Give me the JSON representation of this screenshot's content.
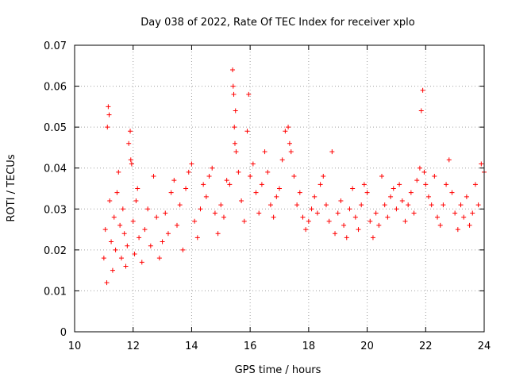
{
  "chart_data": {
    "type": "scatter",
    "title": "Day 038 of 2022, Rate Of TEC Index for receiver xplo",
    "xlabel": "GPS time / hours",
    "ylabel": "ROTI / TECUs",
    "xlim": [
      10,
      24
    ],
    "ylim": [
      0,
      0.07
    ],
    "xticks": [
      10,
      12,
      14,
      16,
      18,
      20,
      22,
      24
    ],
    "xtick_labels": [
      "10",
      "12",
      "14",
      "16",
      "18",
      "20",
      "22",
      "24"
    ],
    "yticks": [
      0,
      0.01,
      0.02,
      0.03,
      0.04,
      0.05,
      0.06,
      0.07
    ],
    "ytick_labels": [
      "0",
      "0.01",
      "0.02",
      "0.03",
      "0.04",
      "0.05",
      "0.06",
      "0.07"
    ],
    "grid": true,
    "marker": "plus",
    "color": "#ff0000",
    "series": [
      {
        "name": "ROTI",
        "points": [
          [
            11.0,
            0.018
          ],
          [
            11.05,
            0.025
          ],
          [
            11.1,
            0.012
          ],
          [
            11.12,
            0.05
          ],
          [
            11.15,
            0.055
          ],
          [
            11.18,
            0.053
          ],
          [
            11.2,
            0.032
          ],
          [
            11.25,
            0.022
          ],
          [
            11.3,
            0.015
          ],
          [
            11.35,
            0.028
          ],
          [
            11.4,
            0.02
          ],
          [
            11.45,
            0.034
          ],
          [
            11.5,
            0.039
          ],
          [
            11.55,
            0.026
          ],
          [
            11.6,
            0.018
          ],
          [
            11.65,
            0.03
          ],
          [
            11.7,
            0.024
          ],
          [
            11.75,
            0.016
          ],
          [
            11.8,
            0.021
          ],
          [
            11.85,
            0.046
          ],
          [
            11.9,
            0.049
          ],
          [
            11.92,
            0.042
          ],
          [
            11.95,
            0.041
          ],
          [
            12.0,
            0.027
          ],
          [
            12.05,
            0.019
          ],
          [
            12.1,
            0.032
          ],
          [
            12.15,
            0.035
          ],
          [
            12.2,
            0.023
          ],
          [
            12.3,
            0.017
          ],
          [
            12.4,
            0.025
          ],
          [
            12.5,
            0.03
          ],
          [
            12.6,
            0.021
          ],
          [
            12.7,
            0.038
          ],
          [
            12.8,
            0.028
          ],
          [
            12.9,
            0.018
          ],
          [
            13.0,
            0.022
          ],
          [
            13.1,
            0.029
          ],
          [
            13.2,
            0.024
          ],
          [
            13.3,
            0.034
          ],
          [
            13.4,
            0.037
          ],
          [
            13.5,
            0.026
          ],
          [
            13.6,
            0.031
          ],
          [
            13.7,
            0.02
          ],
          [
            13.8,
            0.035
          ],
          [
            13.9,
            0.039
          ],
          [
            14.0,
            0.041
          ],
          [
            14.1,
            0.027
          ],
          [
            14.2,
            0.023
          ],
          [
            14.3,
            0.03
          ],
          [
            14.4,
            0.036
          ],
          [
            14.5,
            0.033
          ],
          [
            14.6,
            0.038
          ],
          [
            14.7,
            0.04
          ],
          [
            14.8,
            0.029
          ],
          [
            14.9,
            0.024
          ],
          [
            15.0,
            0.031
          ],
          [
            15.1,
            0.028
          ],
          [
            15.2,
            0.037
          ],
          [
            15.3,
            0.036
          ],
          [
            15.4,
            0.064
          ],
          [
            15.42,
            0.06
          ],
          [
            15.44,
            0.058
          ],
          [
            15.46,
            0.05
          ],
          [
            15.48,
            0.046
          ],
          [
            15.5,
            0.054
          ],
          [
            15.52,
            0.044
          ],
          [
            15.6,
            0.039
          ],
          [
            15.7,
            0.032
          ],
          [
            15.8,
            0.027
          ],
          [
            15.9,
            0.049
          ],
          [
            15.95,
            0.058
          ],
          [
            16.0,
            0.038
          ],
          [
            16.1,
            0.041
          ],
          [
            16.2,
            0.034
          ],
          [
            16.3,
            0.029
          ],
          [
            16.4,
            0.036
          ],
          [
            16.5,
            0.044
          ],
          [
            16.6,
            0.039
          ],
          [
            16.7,
            0.031
          ],
          [
            16.8,
            0.028
          ],
          [
            16.9,
            0.033
          ],
          [
            17.0,
            0.035
          ],
          [
            17.1,
            0.042
          ],
          [
            17.2,
            0.049
          ],
          [
            17.3,
            0.05
          ],
          [
            17.35,
            0.046
          ],
          [
            17.4,
            0.044
          ],
          [
            17.5,
            0.038
          ],
          [
            17.6,
            0.031
          ],
          [
            17.7,
            0.034
          ],
          [
            17.8,
            0.028
          ],
          [
            17.9,
            0.025
          ],
          [
            18.0,
            0.027
          ],
          [
            18.1,
            0.03
          ],
          [
            18.2,
            0.033
          ],
          [
            18.3,
            0.029
          ],
          [
            18.4,
            0.036
          ],
          [
            18.5,
            0.038
          ],
          [
            18.6,
            0.031
          ],
          [
            18.7,
            0.027
          ],
          [
            18.8,
            0.044
          ],
          [
            18.9,
            0.024
          ],
          [
            19.0,
            0.029
          ],
          [
            19.1,
            0.032
          ],
          [
            19.2,
            0.026
          ],
          [
            19.3,
            0.023
          ],
          [
            19.4,
            0.03
          ],
          [
            19.5,
            0.035
          ],
          [
            19.6,
            0.028
          ],
          [
            19.7,
            0.025
          ],
          [
            19.8,
            0.031
          ],
          [
            19.9,
            0.036
          ],
          [
            20.0,
            0.034
          ],
          [
            20.1,
            0.027
          ],
          [
            20.2,
            0.023
          ],
          [
            20.3,
            0.029
          ],
          [
            20.4,
            0.026
          ],
          [
            20.5,
            0.038
          ],
          [
            20.6,
            0.031
          ],
          [
            20.7,
            0.028
          ],
          [
            20.8,
            0.033
          ],
          [
            20.9,
            0.035
          ],
          [
            21.0,
            0.03
          ],
          [
            21.1,
            0.036
          ],
          [
            21.2,
            0.032
          ],
          [
            21.3,
            0.027
          ],
          [
            21.4,
            0.031
          ],
          [
            21.5,
            0.034
          ],
          [
            21.6,
            0.029
          ],
          [
            21.7,
            0.037
          ],
          [
            21.8,
            0.04
          ],
          [
            21.85,
            0.054
          ],
          [
            21.9,
            0.059
          ],
          [
            21.95,
            0.039
          ],
          [
            22.0,
            0.036
          ],
          [
            22.1,
            0.033
          ],
          [
            22.2,
            0.031
          ],
          [
            22.3,
            0.038
          ],
          [
            22.4,
            0.028
          ],
          [
            22.5,
            0.026
          ],
          [
            22.6,
            0.031
          ],
          [
            22.7,
            0.036
          ],
          [
            22.8,
            0.042
          ],
          [
            22.9,
            0.034
          ],
          [
            23.0,
            0.029
          ],
          [
            23.1,
            0.025
          ],
          [
            23.2,
            0.031
          ],
          [
            23.3,
            0.028
          ],
          [
            23.4,
            0.033
          ],
          [
            23.5,
            0.026
          ],
          [
            23.6,
            0.029
          ],
          [
            23.7,
            0.036
          ],
          [
            23.8,
            0.031
          ],
          [
            23.9,
            0.041
          ],
          [
            24.0,
            0.039
          ]
        ]
      }
    ]
  }
}
